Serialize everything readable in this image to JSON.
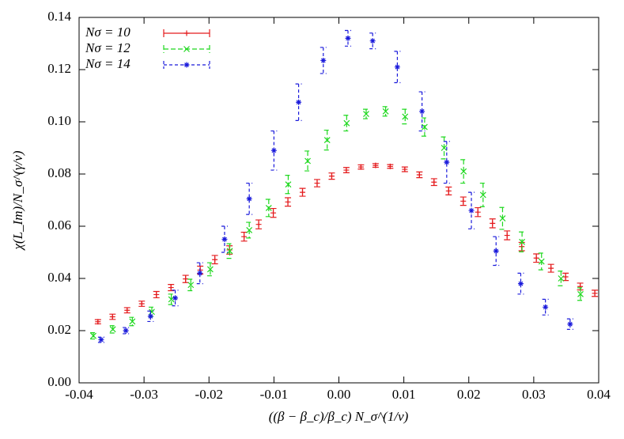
{
  "chart_data": {
    "type": "errorbar-scatter",
    "xlabel": "((β − β_c)/β_c) N_σ^(1/ν)",
    "ylabel": "χ(L_Im)/N_σ^(γ/ν)",
    "xlim": [
      -0.04,
      0.04
    ],
    "ylim": [
      0,
      0.14
    ],
    "xticks": [
      -0.04,
      -0.03,
      -0.02,
      -0.01,
      {
        "value": 0,
        "label": "0.00"
      },
      0.01,
      0.02,
      0.03,
      0.04
    ],
    "yticks": [
      {
        "value": 0,
        "label": "0.00"
      },
      0.02,
      0.04,
      0.06,
      0.08,
      {
        "value": 0.1,
        "label": "0.10"
      },
      0.12,
      0.14
    ],
    "legend": "top-left",
    "series": [
      {
        "name": "Nσ = 10",
        "color": "#e41a1c",
        "marker": "+",
        "x": [
          -0.0371,
          -0.03485,
          -0.0326,
          -0.03035,
          -0.0281,
          -0.02585,
          -0.0236,
          -0.02135,
          -0.0191,
          -0.01685,
          -0.0146,
          -0.01235,
          -0.0101,
          -0.00785,
          -0.0056,
          -0.00335,
          -0.0011,
          0.00115,
          0.0034,
          0.00565,
          0.0079,
          0.01015,
          0.0124,
          0.01465,
          0.0169,
          0.01915,
          0.0214,
          0.02365,
          0.0259,
          0.02815,
          0.0304,
          0.03265,
          0.0349,
          0.03715,
          0.0394
        ],
        "values": [
          0.0234,
          0.0253,
          0.0278,
          0.0303,
          0.0338,
          0.0365,
          0.0398,
          0.0432,
          0.0472,
          0.0509,
          0.056,
          0.0607,
          0.0651,
          0.0693,
          0.073,
          0.0765,
          0.0792,
          0.0815,
          0.0827,
          0.0833,
          0.0829,
          0.0818,
          0.0797,
          0.0769,
          0.0735,
          0.0696,
          0.0654,
          0.0611,
          0.0565,
          0.0522,
          0.0478,
          0.0439,
          0.0406,
          0.0369,
          0.0343
        ],
        "errors": [
          0.0008,
          0.001,
          0.001,
          0.001,
          0.0012,
          0.0012,
          0.0014,
          0.0015,
          0.0016,
          0.0016,
          0.0017,
          0.0017,
          0.0017,
          0.0016,
          0.0015,
          0.0014,
          0.0012,
          0.001,
          0.0008,
          0.0007,
          0.0007,
          0.0009,
          0.0011,
          0.0013,
          0.0015,
          0.0016,
          0.0017,
          0.0017,
          0.0017,
          0.0016,
          0.0016,
          0.0015,
          0.0014,
          0.0013,
          0.0012
        ]
      },
      {
        "name": "Nσ = 12",
        "color": "#1fd81f",
        "marker": "x",
        "x": [
          -0.0378,
          -0.0348,
          -0.0318,
          -0.0288,
          -0.0258,
          -0.0228,
          -0.0198,
          -0.0168,
          -0.0138,
          -0.0108,
          -0.0078,
          -0.0048,
          -0.0018,
          0.0012,
          0.0042,
          0.0072,
          0.0102,
          0.0132,
          0.0162,
          0.0192,
          0.0222,
          0.0252,
          0.0282,
          0.0312,
          0.0342,
          0.0372
        ],
        "values": [
          0.018,
          0.0205,
          0.0235,
          0.0272,
          0.032,
          0.0375,
          0.0435,
          0.0505,
          0.0585,
          0.067,
          0.076,
          0.085,
          0.093,
          0.0995,
          0.103,
          0.104,
          0.102,
          0.098,
          0.09,
          0.081,
          0.072,
          0.063,
          0.054,
          0.0465,
          0.04,
          0.034
        ],
        "errors": [
          0.0012,
          0.0014,
          0.0016,
          0.0018,
          0.002,
          0.0022,
          0.0025,
          0.0028,
          0.003,
          0.0033,
          0.0035,
          0.0038,
          0.0038,
          0.003,
          0.0018,
          0.0018,
          0.0028,
          0.0035,
          0.0042,
          0.0045,
          0.0045,
          0.0042,
          0.0038,
          0.0032,
          0.0028,
          0.0024
        ]
      },
      {
        "name": "Nσ = 14",
        "color": "#1a1adb",
        "marker": "*",
        "x": [
          -0.0366,
          -0.0328,
          -0.029,
          -0.0252,
          -0.0214,
          -0.0176,
          -0.0138,
          -0.01,
          -0.0062,
          -0.0024,
          0.0014,
          0.0052,
          0.009,
          0.0128,
          0.0166,
          0.0204,
          0.0242,
          0.028,
          0.0318,
          0.0356
        ],
        "values": [
          0.0165,
          0.02,
          0.0255,
          0.0325,
          0.042,
          0.055,
          0.0705,
          0.089,
          0.1075,
          0.1235,
          0.132,
          0.131,
          0.121,
          0.104,
          0.0845,
          0.066,
          0.0505,
          0.038,
          0.029,
          0.0225
        ],
        "errors": [
          0.001,
          0.0012,
          0.002,
          0.003,
          0.004,
          0.005,
          0.006,
          0.0075,
          0.007,
          0.005,
          0.003,
          0.003,
          0.006,
          0.0075,
          0.008,
          0.007,
          0.0055,
          0.004,
          0.003,
          0.002
        ]
      }
    ]
  }
}
